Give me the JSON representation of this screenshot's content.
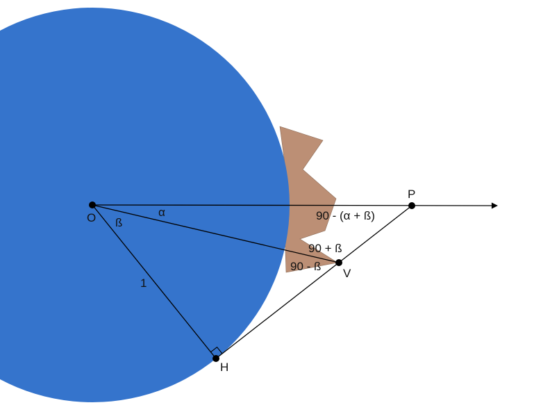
{
  "colors": {
    "circle": "#3574CC",
    "mountain": "#BC8F75",
    "line": "#000000",
    "background": "#FFFFFF"
  },
  "points": {
    "O": "O",
    "P": "P",
    "V": "V",
    "H": "H"
  },
  "angles": {
    "alpha": "α",
    "beta": "ß",
    "at_p": "90 - (α + ß)",
    "v_upper": "90 + ß",
    "v_lower": "90 - ß"
  },
  "segments": {
    "oh": "1"
  }
}
